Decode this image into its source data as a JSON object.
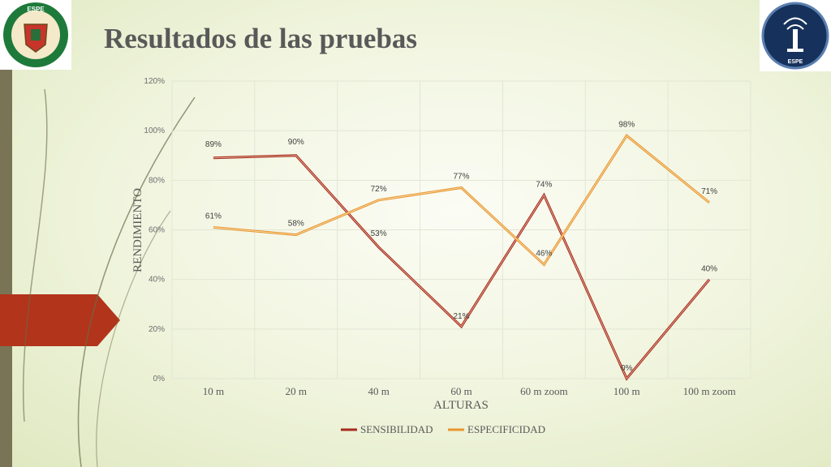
{
  "slide": {
    "title": "Resultados de las pruebas",
    "logo_left_text": "ESPE",
    "logo_right_text": "ESPE"
  },
  "colors": {
    "sensibilidad": "#a52a1e",
    "especificidad": "#e8962e",
    "accent_tab": "#b2341b"
  },
  "chart_data": {
    "type": "line",
    "categories": [
      "10 m",
      "20 m",
      "40 m",
      "60 m",
      "60 m zoom",
      "100 m",
      "100 m zoom"
    ],
    "series": [
      {
        "name": "SENSIBILIDAD",
        "values": [
          89,
          90,
          53,
          21,
          74,
          0,
          40
        ],
        "labels": [
          "89%",
          "90%",
          "53%",
          "21%",
          "74%",
          "0%",
          "40%"
        ]
      },
      {
        "name": "ESPECIFICIDAD",
        "values": [
          61,
          58,
          72,
          77,
          46,
          98,
          71
        ],
        "labels": [
          "61%",
          "58%",
          "72%",
          "77%",
          "46%",
          "98%",
          "71%"
        ]
      }
    ],
    "xlabel": "ALTURAS",
    "ylabel": "RENDIMIENTO",
    "ylim": [
      0,
      120
    ],
    "yticks": [
      "0%",
      "20%",
      "40%",
      "60%",
      "80%",
      "100%",
      "120%"
    ],
    "grid": true,
    "legend": "bottom"
  }
}
